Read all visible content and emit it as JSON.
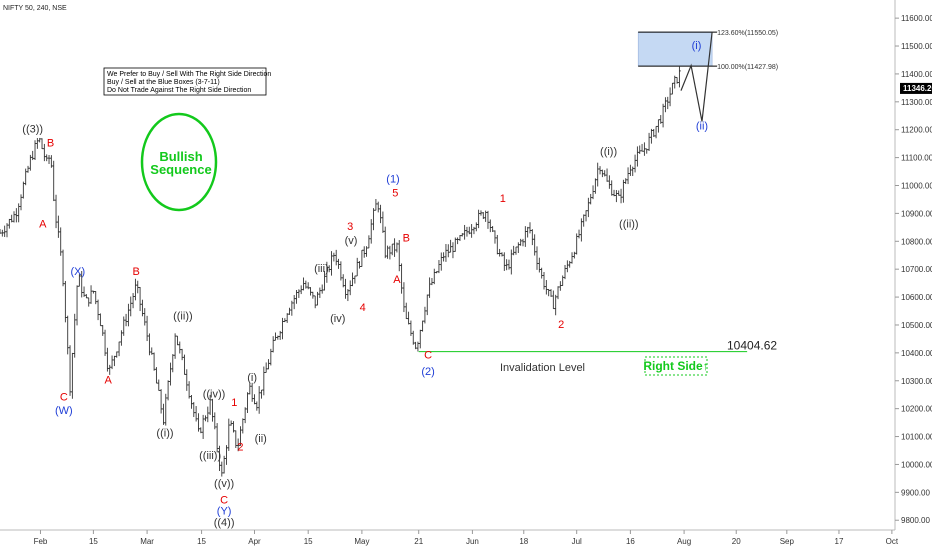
{
  "symbol": "NIFTY 50, 240, NSE",
  "note_lines": [
    "We Prefer to Buy / Sell With The Right Side Direction",
    "Buy / Sell at the Blue Boxes (3-7-11)",
    "Do Not Trade Against The Right Side Direction"
  ],
  "bullish_lines": [
    "Bullish",
    "Sequence"
  ],
  "right_side_label": "Right Side↑",
  "invalidation_label": "Invalidation Level",
  "invalidation_value": "10404.62",
  "current_price_label": "11346.20",
  "fib_labels": [
    "123.60%(11550.05)",
    "100.00%(11427.98)"
  ],
  "colors": {
    "candle": "#333333",
    "red_label": "#e60000",
    "blue_label": "#1f3ed6",
    "green": "#13c91c",
    "blue_box_fill": "#c5d9f3",
    "price_tag": "#000000"
  },
  "chart_data": {
    "type": "ohlc",
    "y_ticks": [
      "11600.00",
      "11500.00",
      "11400.00",
      "11300.00",
      "11200.00",
      "11100.00",
      "11000.00",
      "10900.00",
      "10800.00",
      "10700.00",
      "10600.00",
      "10500.00",
      "10400.00",
      "10300.00",
      "10200.00",
      "10100.00",
      "10000.00",
      "9900.00",
      "9800.00"
    ],
    "x_ticks": [
      "Feb",
      "15",
      "Mar",
      "15",
      "Apr",
      "15",
      "May",
      "21",
      "Jun",
      "18",
      "Jul",
      "16",
      "Aug",
      "20",
      "Sep",
      "17",
      "Oct"
    ],
    "ylim": [
      9765,
      11665
    ],
    "x_domain": [
      0,
      115
    ],
    "x_tick_positions": [
      5.2,
      12.0,
      18.9,
      25.9,
      32.7,
      39.6,
      46.5,
      53.8,
      60.7,
      67.3,
      74.1,
      81.0,
      87.9,
      94.6,
      101.1,
      107.8,
      114.6
    ],
    "price_path": [
      [
        0,
        10830
      ],
      [
        2,
        10900
      ],
      [
        4,
        11100
      ],
      [
        5,
        11170
      ],
      [
        6,
        11080
      ],
      [
        6.5,
        11110
      ],
      [
        7,
        10920
      ],
      [
        8,
        10710
      ],
      [
        9,
        10280
      ],
      [
        10,
        10680
      ],
      [
        11,
        10580
      ],
      [
        12,
        10620
      ],
      [
        13,
        10500
      ],
      [
        14,
        10330
      ],
      [
        16,
        10510
      ],
      [
        17.5,
        10640
      ],
      [
        19,
        10450
      ],
      [
        21,
        10160
      ],
      [
        22.5,
        10470
      ],
      [
        24,
        10300
      ],
      [
        25.5,
        10110
      ],
      [
        27,
        10220
      ],
      [
        28.5,
        9960
      ],
      [
        29.5,
        10150
      ],
      [
        30.5,
        10060
      ],
      [
        32,
        10280
      ],
      [
        33,
        10220
      ],
      [
        35,
        10420
      ],
      [
        37,
        10560
      ],
      [
        39,
        10650
      ],
      [
        40.5,
        10580
      ],
      [
        43,
        10760
      ],
      [
        44.5,
        10620
      ],
      [
        47,
        10780
      ],
      [
        48.5,
        10950
      ],
      [
        49.5,
        10760
      ],
      [
        51,
        10780
      ],
      [
        52,
        10530
      ],
      [
        53.5,
        10420
      ],
      [
        55,
        10620
      ],
      [
        57,
        10750
      ],
      [
        59,
        10800
      ],
      [
        61,
        10870
      ],
      [
        62.5,
        10910
      ],
      [
        63.5,
        10800
      ],
      [
        65,
        10700
      ],
      [
        66.5,
        10780
      ],
      [
        68,
        10850
      ],
      [
        69.5,
        10680
      ],
      [
        71,
        10570
      ],
      [
        72,
        10650
      ],
      [
        74,
        10790
      ],
      [
        75.5,
        10920
      ],
      [
        77,
        11080
      ],
      [
        78,
        11010
      ],
      [
        79.5,
        10950
      ],
      [
        81,
        11070
      ],
      [
        83,
        11140
      ],
      [
        85,
        11250
      ],
      [
        86.5,
        11360
      ],
      [
        87.3,
        11400
      ]
    ],
    "projection_path": [
      [
        87.5,
        11340
      ],
      [
        88.8,
        11430
      ],
      [
        90.2,
        11230
      ],
      [
        91.5,
        11550
      ]
    ],
    "fib_zone": {
      "low": 11427.98,
      "high": 11550.05,
      "x_start": 82,
      "x_end": 91.5
    },
    "invalidation": {
      "value": 10404.62,
      "x_start": 53.8,
      "x_end": 96
    },
    "current_price": 11346.2,
    "wave_labels": [
      {
        "t": "((3))",
        "x": 4.2,
        "y": 11190,
        "c": "black"
      },
      {
        "t": "B",
        "x": 6.5,
        "y": 11140,
        "c": "red"
      },
      {
        "t": "A",
        "x": 5.5,
        "y": 10850,
        "c": "red"
      },
      {
        "t": "(X)",
        "x": 10.0,
        "y": 10680,
        "c": "blue"
      },
      {
        "t": "C",
        "x": 8.2,
        "y": 10230,
        "c": "red"
      },
      {
        "t": "(W)",
        "x": 8.2,
        "y": 10180,
        "c": "blue"
      },
      {
        "t": "B",
        "x": 17.5,
        "y": 10680,
        "c": "red"
      },
      {
        "t": "A",
        "x": 13.9,
        "y": 10290,
        "c": "red"
      },
      {
        "t": "((ii))",
        "x": 23.5,
        "y": 10520,
        "c": "black"
      },
      {
        "t": "((i))",
        "x": 21.2,
        "y": 10100,
        "c": "black"
      },
      {
        "t": "((iv))",
        "x": 27.5,
        "y": 10240,
        "c": "black"
      },
      {
        "t": "((iii))",
        "x": 27.0,
        "y": 10020,
        "c": "black"
      },
      {
        "t": "((v))",
        "x": 28.8,
        "y": 9920,
        "c": "black"
      },
      {
        "t": "C",
        "x": 28.8,
        "y": 9860,
        "c": "red"
      },
      {
        "t": "(Y)",
        "x": 28.8,
        "y": 9820,
        "c": "blue"
      },
      {
        "t": "((4))",
        "x": 28.8,
        "y": 9780,
        "c": "black"
      },
      {
        "t": "1",
        "x": 30.1,
        "y": 10210,
        "c": "red"
      },
      {
        "t": "2",
        "x": 30.9,
        "y": 10050,
        "c": "red"
      },
      {
        "t": "(i)",
        "x": 32.4,
        "y": 10300,
        "c": "black"
      },
      {
        "t": "(ii)",
        "x": 33.5,
        "y": 10080,
        "c": "black"
      },
      {
        "t": "(iii)",
        "x": 41.3,
        "y": 10690,
        "c": "black"
      },
      {
        "t": "(iv)",
        "x": 43.4,
        "y": 10510,
        "c": "black"
      },
      {
        "t": "(v)",
        "x": 45.1,
        "y": 10790,
        "c": "black"
      },
      {
        "t": "3",
        "x": 45.0,
        "y": 10840,
        "c": "red"
      },
      {
        "t": "4",
        "x": 46.6,
        "y": 10550,
        "c": "red"
      },
      {
        "t": "(1)",
        "x": 50.5,
        "y": 11010,
        "c": "blue"
      },
      {
        "t": "5",
        "x": 50.8,
        "y": 10960,
        "c": "red"
      },
      {
        "t": "B",
        "x": 52.2,
        "y": 10800,
        "c": "red"
      },
      {
        "t": "A",
        "x": 51.0,
        "y": 10650,
        "c": "red"
      },
      {
        "t": "C",
        "x": 55.0,
        "y": 10380,
        "c": "red"
      },
      {
        "t": "(2)",
        "x": 55.0,
        "y": 10320,
        "c": "blue"
      },
      {
        "t": "1",
        "x": 64.6,
        "y": 10940,
        "c": "red"
      },
      {
        "t": "2",
        "x": 72.1,
        "y": 10490,
        "c": "red"
      },
      {
        "t": "((i))",
        "x": 78.2,
        "y": 11110,
        "c": "black"
      },
      {
        "t": "((ii))",
        "x": 80.8,
        "y": 10850,
        "c": "black"
      },
      {
        "t": "(i)",
        "x": 89.5,
        "y": 11490,
        "c": "blue"
      },
      {
        "t": "(ii)",
        "x": 90.2,
        "y": 11200,
        "c": "blue"
      }
    ]
  }
}
